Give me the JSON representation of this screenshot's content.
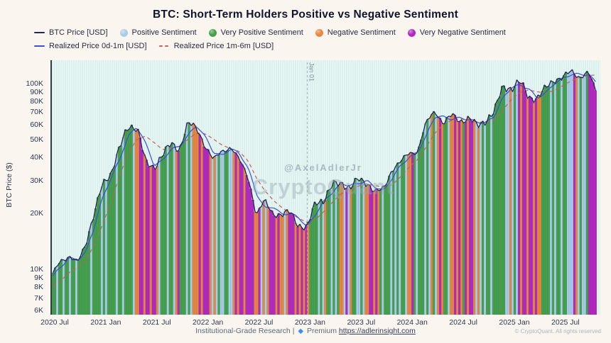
{
  "title": "BTC: Short-Term Holders Positive vs Negative Sentiment",
  "y_axis_title": "BTC Price ($)",
  "watermark": {
    "handle": "@AxelAdlerJr",
    "brand": "CryptoQuant"
  },
  "annotation": {
    "label": "Jan 01"
  },
  "footer": {
    "research": "Institutional-Grade Research |",
    "premium_icon": "◆",
    "premium": "Premium",
    "url": "https://adlerinsight.com",
    "copyright": "© CryptoQuant. All rights reserved"
  },
  "legend": {
    "items": [
      {
        "label": "BTC Price [USD]",
        "marker": "line",
        "color": "#23284f"
      },
      {
        "label": "Positive Sentiment",
        "marker": "circle",
        "color": "#a9cde7"
      },
      {
        "label": "Very Positive Sentiment",
        "marker": "circle",
        "color": "#44a14c"
      },
      {
        "label": "Negative Sentiment",
        "marker": "circle",
        "color": "#e68640"
      },
      {
        "label": "Very Negative Sentiment",
        "marker": "circle",
        "color": "#b427c0"
      },
      {
        "label": "Realized Price 0d-1m [USD]",
        "marker": "line",
        "color": "#3d4ed8"
      },
      {
        "label": "Realized Price 1m-6m [USD]",
        "marker": "dash",
        "color": "#cd5c55"
      }
    ]
  },
  "chart_data": {
    "type": "bar",
    "subtype": "price-height bars colored by sentiment, with line overlays",
    "yscale": "log",
    "ylim_thousands": [
      5.7,
      133
    ],
    "x_start": "2020-07",
    "x_end": "2025-10",
    "x_unit": "months",
    "total_month_span": 64.6,
    "y_ticks": [
      {
        "v": 100,
        "label": "100K"
      },
      {
        "v": 90,
        "label": "90K"
      },
      {
        "v": 80,
        "label": "80K"
      },
      {
        "v": 70,
        "label": "70K"
      },
      {
        "v": 60,
        "label": "60K"
      },
      {
        "v": 50,
        "label": "50K"
      },
      {
        "v": 40,
        "label": "40K"
      },
      {
        "v": 30,
        "label": "30K"
      },
      {
        "v": 20,
        "label": "20K"
      },
      {
        "v": 10,
        "label": "10K"
      },
      {
        "v": 9,
        "label": "9K"
      },
      {
        "v": 8,
        "label": "8K"
      },
      {
        "v": 7,
        "label": "7K"
      },
      {
        "v": 6,
        "label": "6K"
      }
    ],
    "x_ticks": [
      {
        "m": 0,
        "label": "2020 Jul"
      },
      {
        "m": 6,
        "label": "2021 Jan"
      },
      {
        "m": 12,
        "label": "2021 Jul"
      },
      {
        "m": 18,
        "label": "2022 Jan"
      },
      {
        "m": 24,
        "label": "2022 Jul"
      },
      {
        "m": 30,
        "label": "2023 Jan"
      },
      {
        "m": 36,
        "label": "2023 Jul"
      },
      {
        "m": 42,
        "label": "2024 Jan"
      },
      {
        "m": 48,
        "label": "2024 Jul"
      },
      {
        "m": 54,
        "label": "2025 Jan"
      },
      {
        "m": 60,
        "label": "2025 Jul"
      }
    ],
    "event_line_month": 30,
    "btc_price_monthly_k": [
      9.1,
      11.3,
      11.6,
      10.8,
      13.8,
      19.7,
      29.0,
      33.1,
      45.2,
      58.8,
      57.8,
      37.3,
      35.0,
      41.5,
      47.1,
      43.8,
      61.3,
      57.0,
      46.2,
      38.5,
      43.2,
      45.5,
      38.6,
      31.8,
      19.3,
      23.3,
      20.0,
      19.4,
      20.5,
      17.2,
      16.5,
      23.1,
      23.5,
      28.5,
      29.2,
      27.2,
      30.5,
      29.2,
      26.0,
      27.0,
      34.7,
      37.7,
      42.3,
      43.1,
      61.2,
      71.3,
      60.6,
      67.5,
      62.8,
      64.6,
      59.1,
      63.3,
      70.2,
      96.4,
      93.4,
      102.4,
      84.4,
      82.5,
      94.2,
      104.6,
      107.1,
      115.8,
      108.2,
      114.0,
      88.0
    ],
    "realized_price_0d_1m_monthly_k": [
      9.1,
      10.2,
      11.5,
      11.2,
      12.3,
      16.8,
      24.4,
      31.1,
      39.2,
      52.0,
      58.3,
      47.6,
      36.2,
      38.3,
      44.3,
      45.5,
      52.6,
      59.2,
      51.6,
      42.4,
      40.9,
      44.4,
      42.1,
      35.2,
      25.6,
      21.3,
      21.7,
      19.7,
      20.0,
      18.9,
      16.9,
      19.8,
      23.3,
      26.0,
      28.9,
      28.2,
      28.9,
      29.9,
      27.6,
      26.5,
      30.9,
      36.2,
      40.0,
      42.7,
      52.2,
      66.3,
      66.0,
      64.1,
      65.2,
      63.7,
      61.9,
      61.2,
      66.8,
      83.3,
      94.9,
      97.9,
      93.4,
      83.5,
      88.4,
      99.4,
      105.9,
      111.5,
      112.0,
      111.1,
      101.0
    ],
    "realized_price_1m_6m_monthly_k": [
      8.0,
      8.6,
      9.6,
      10.2,
      11.2,
      13.5,
      17.5,
      23.0,
      32.0,
      42.0,
      50.0,
      52.0,
      48.0,
      44.0,
      44.5,
      46.0,
      50.0,
      54.0,
      53.5,
      50.0,
      46.5,
      44.5,
      43.0,
      38.5,
      31.0,
      26.5,
      23.5,
      21.5,
      20.0,
      18.8,
      17.8,
      18.5,
      20.5,
      23.0,
      25.5,
      27.0,
      28.0,
      28.8,
      28.2,
      27.5,
      28.5,
      31.5,
      35.5,
      39.0,
      45.5,
      54.0,
      60.0,
      63.5,
      64.5,
      63.5,
      62.0,
      61.5,
      63.5,
      72.0,
      82.0,
      89.5,
      92.0,
      90.0,
      88.5,
      91.5,
      97.0,
      103.0,
      107.5,
      110.0,
      111.0
    ],
    "sentiment_codes": {
      "G": {
        "label": "Very Positive Sentiment",
        "color": "#44a14c",
        "edge": "#2c7d35"
      },
      "B": {
        "label": "Positive Sentiment",
        "color": "#a9cde7",
        "edge": "#7fa9c9"
      },
      "O": {
        "label": "Negative Sentiment",
        "color": "#e68640",
        "edge": "#c66a22"
      },
      "P": {
        "label": "Very Negative Sentiment",
        "color": "#b427c0",
        "edge": "#8d1aa0"
      }
    },
    "sentiment_by_week": "GGBGGBGGBGGBGGGGGGBGGGGBGBGGGGBGGBGGGGBOOPPOPPOPPOBGGGBGGBOPGGGBGBOOOPOPPPOBOBGBBGGBBOPOPPOPPPPOOPBOBOPPPOPOOBOPPPOPOPOPOGGGGBGBOGGBGBGOOBPBOGGBBGBOOPPOPOGBGGGBGBGBGGBOOPGBGGGBGBOGBOPOGGBOOPOPOGPOPPOBOBGBGGBGGGGGGBBOBGBPOPPOPPOPOOGGGGBGBGGBGGBBBPOBGBBGPPPP"
  },
  "colors": {
    "page_bg": "#faf6ef",
    "plot_bg": "#dcf1ee",
    "btc_line": "#23284f",
    "realized_0d_1m": "#3d4ed8",
    "realized_1m_6m": "#cd5c55",
    "event_line": "#9bb0b6"
  }
}
